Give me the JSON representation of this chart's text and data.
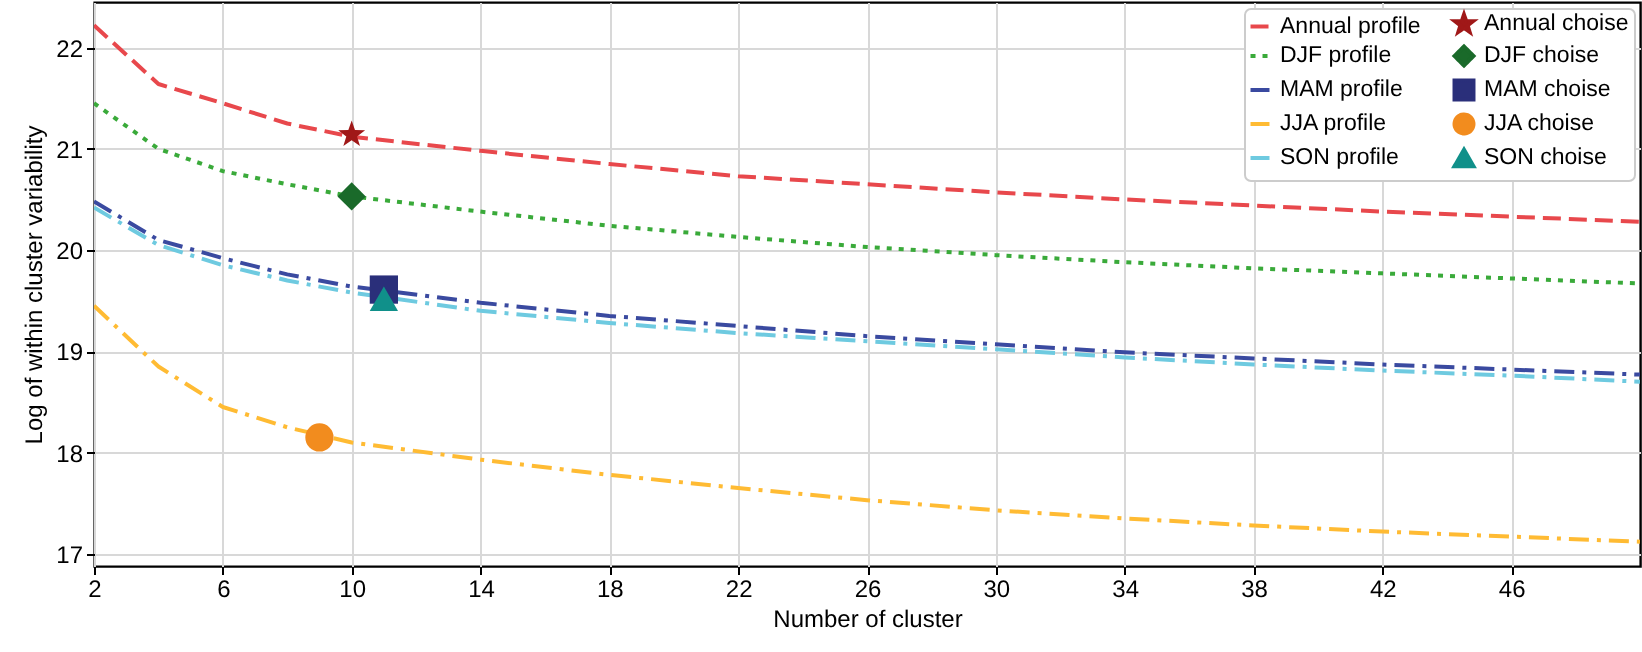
{
  "chart_data": {
    "type": "line",
    "xlabel": "Number of cluster",
    "ylabel": "Log of within cluster variability",
    "xlim": [
      2,
      50
    ],
    "ylim": [
      16.88,
      22.45
    ],
    "xticks": [
      2,
      6,
      10,
      14,
      18,
      22,
      26,
      30,
      34,
      38,
      42,
      46
    ],
    "yticks": [
      17,
      18,
      19,
      20,
      21,
      22
    ],
    "grid": true,
    "legend": "top right",
    "series": [
      {
        "name": "Annual profile",
        "type": "line",
        "line_style": "dashed",
        "color": "#e8484c",
        "x": [
          2,
          4,
          6,
          8,
          10,
          14,
          18,
          22,
          26,
          30,
          34,
          38,
          42,
          46,
          50
        ],
        "values": [
          22.22,
          21.64,
          21.45,
          21.25,
          21.12,
          20.98,
          20.85,
          20.73,
          20.65,
          20.57,
          20.5,
          20.44,
          20.38,
          20.33,
          20.28
        ]
      },
      {
        "name": "Annual choise",
        "type": "scatter",
        "marker": "star",
        "color": "#a01818",
        "x": [
          10
        ],
        "values": [
          21.14
        ]
      },
      {
        "name": "DJF profile",
        "type": "line",
        "line_style": "dotted",
        "color": "#3aaa3a",
        "x": [
          2,
          4,
          6,
          8,
          10,
          14,
          18,
          22,
          26,
          30,
          34,
          38,
          42,
          46,
          50
        ],
        "values": [
          21.45,
          21.0,
          20.78,
          20.65,
          20.53,
          20.38,
          20.24,
          20.13,
          20.03,
          19.95,
          19.88,
          19.82,
          19.77,
          19.72,
          19.67
        ]
      },
      {
        "name": "DJF choise",
        "type": "scatter",
        "marker": "diamond",
        "color": "#1a6a2a",
        "x": [
          10
        ],
        "values": [
          20.53
        ]
      },
      {
        "name": "MAM profile",
        "type": "line",
        "line_style": "dashdot",
        "color": "#3a4aa0",
        "x": [
          2,
          4,
          6,
          8,
          10,
          14,
          18,
          22,
          26,
          30,
          34,
          38,
          42,
          46,
          50
        ],
        "values": [
          20.48,
          20.1,
          19.92,
          19.76,
          19.64,
          19.48,
          19.35,
          19.25,
          19.15,
          19.07,
          18.99,
          18.93,
          18.87,
          18.82,
          18.77
        ]
      },
      {
        "name": "MAM choise",
        "type": "scatter",
        "marker": "square",
        "color": "#2a2f7a",
        "x": [
          11
        ],
        "values": [
          19.61
        ]
      },
      {
        "name": "JJA profile",
        "type": "line",
        "line_style": "dashdot",
        "color": "#ffbb33",
        "x": [
          2,
          4,
          6,
          8,
          10,
          14,
          18,
          22,
          26,
          30,
          34,
          38,
          42,
          46,
          50
        ],
        "values": [
          19.45,
          18.85,
          18.45,
          18.25,
          18.1,
          17.93,
          17.78,
          17.65,
          17.53,
          17.43,
          17.35,
          17.28,
          17.22,
          17.17,
          17.12
        ]
      },
      {
        "name": "JJA choise",
        "type": "scatter",
        "marker": "circle",
        "color": "#f28c1e",
        "x": [
          9
        ],
        "values": [
          18.15
        ]
      },
      {
        "name": "SON profile",
        "type": "line",
        "line_style": "dashdot",
        "color": "#6ecae0",
        "x": [
          2,
          4,
          6,
          8,
          10,
          14,
          18,
          22,
          26,
          30,
          34,
          38,
          42,
          46,
          50
        ],
        "values": [
          20.42,
          20.05,
          19.85,
          19.7,
          19.58,
          19.4,
          19.28,
          19.18,
          19.1,
          19.02,
          18.94,
          18.87,
          18.81,
          18.76,
          18.7
        ]
      },
      {
        "name": "SON choise",
        "type": "scatter",
        "marker": "triangle",
        "color": "#10908a",
        "x": [
          11
        ],
        "values": [
          19.52
        ]
      }
    ]
  }
}
